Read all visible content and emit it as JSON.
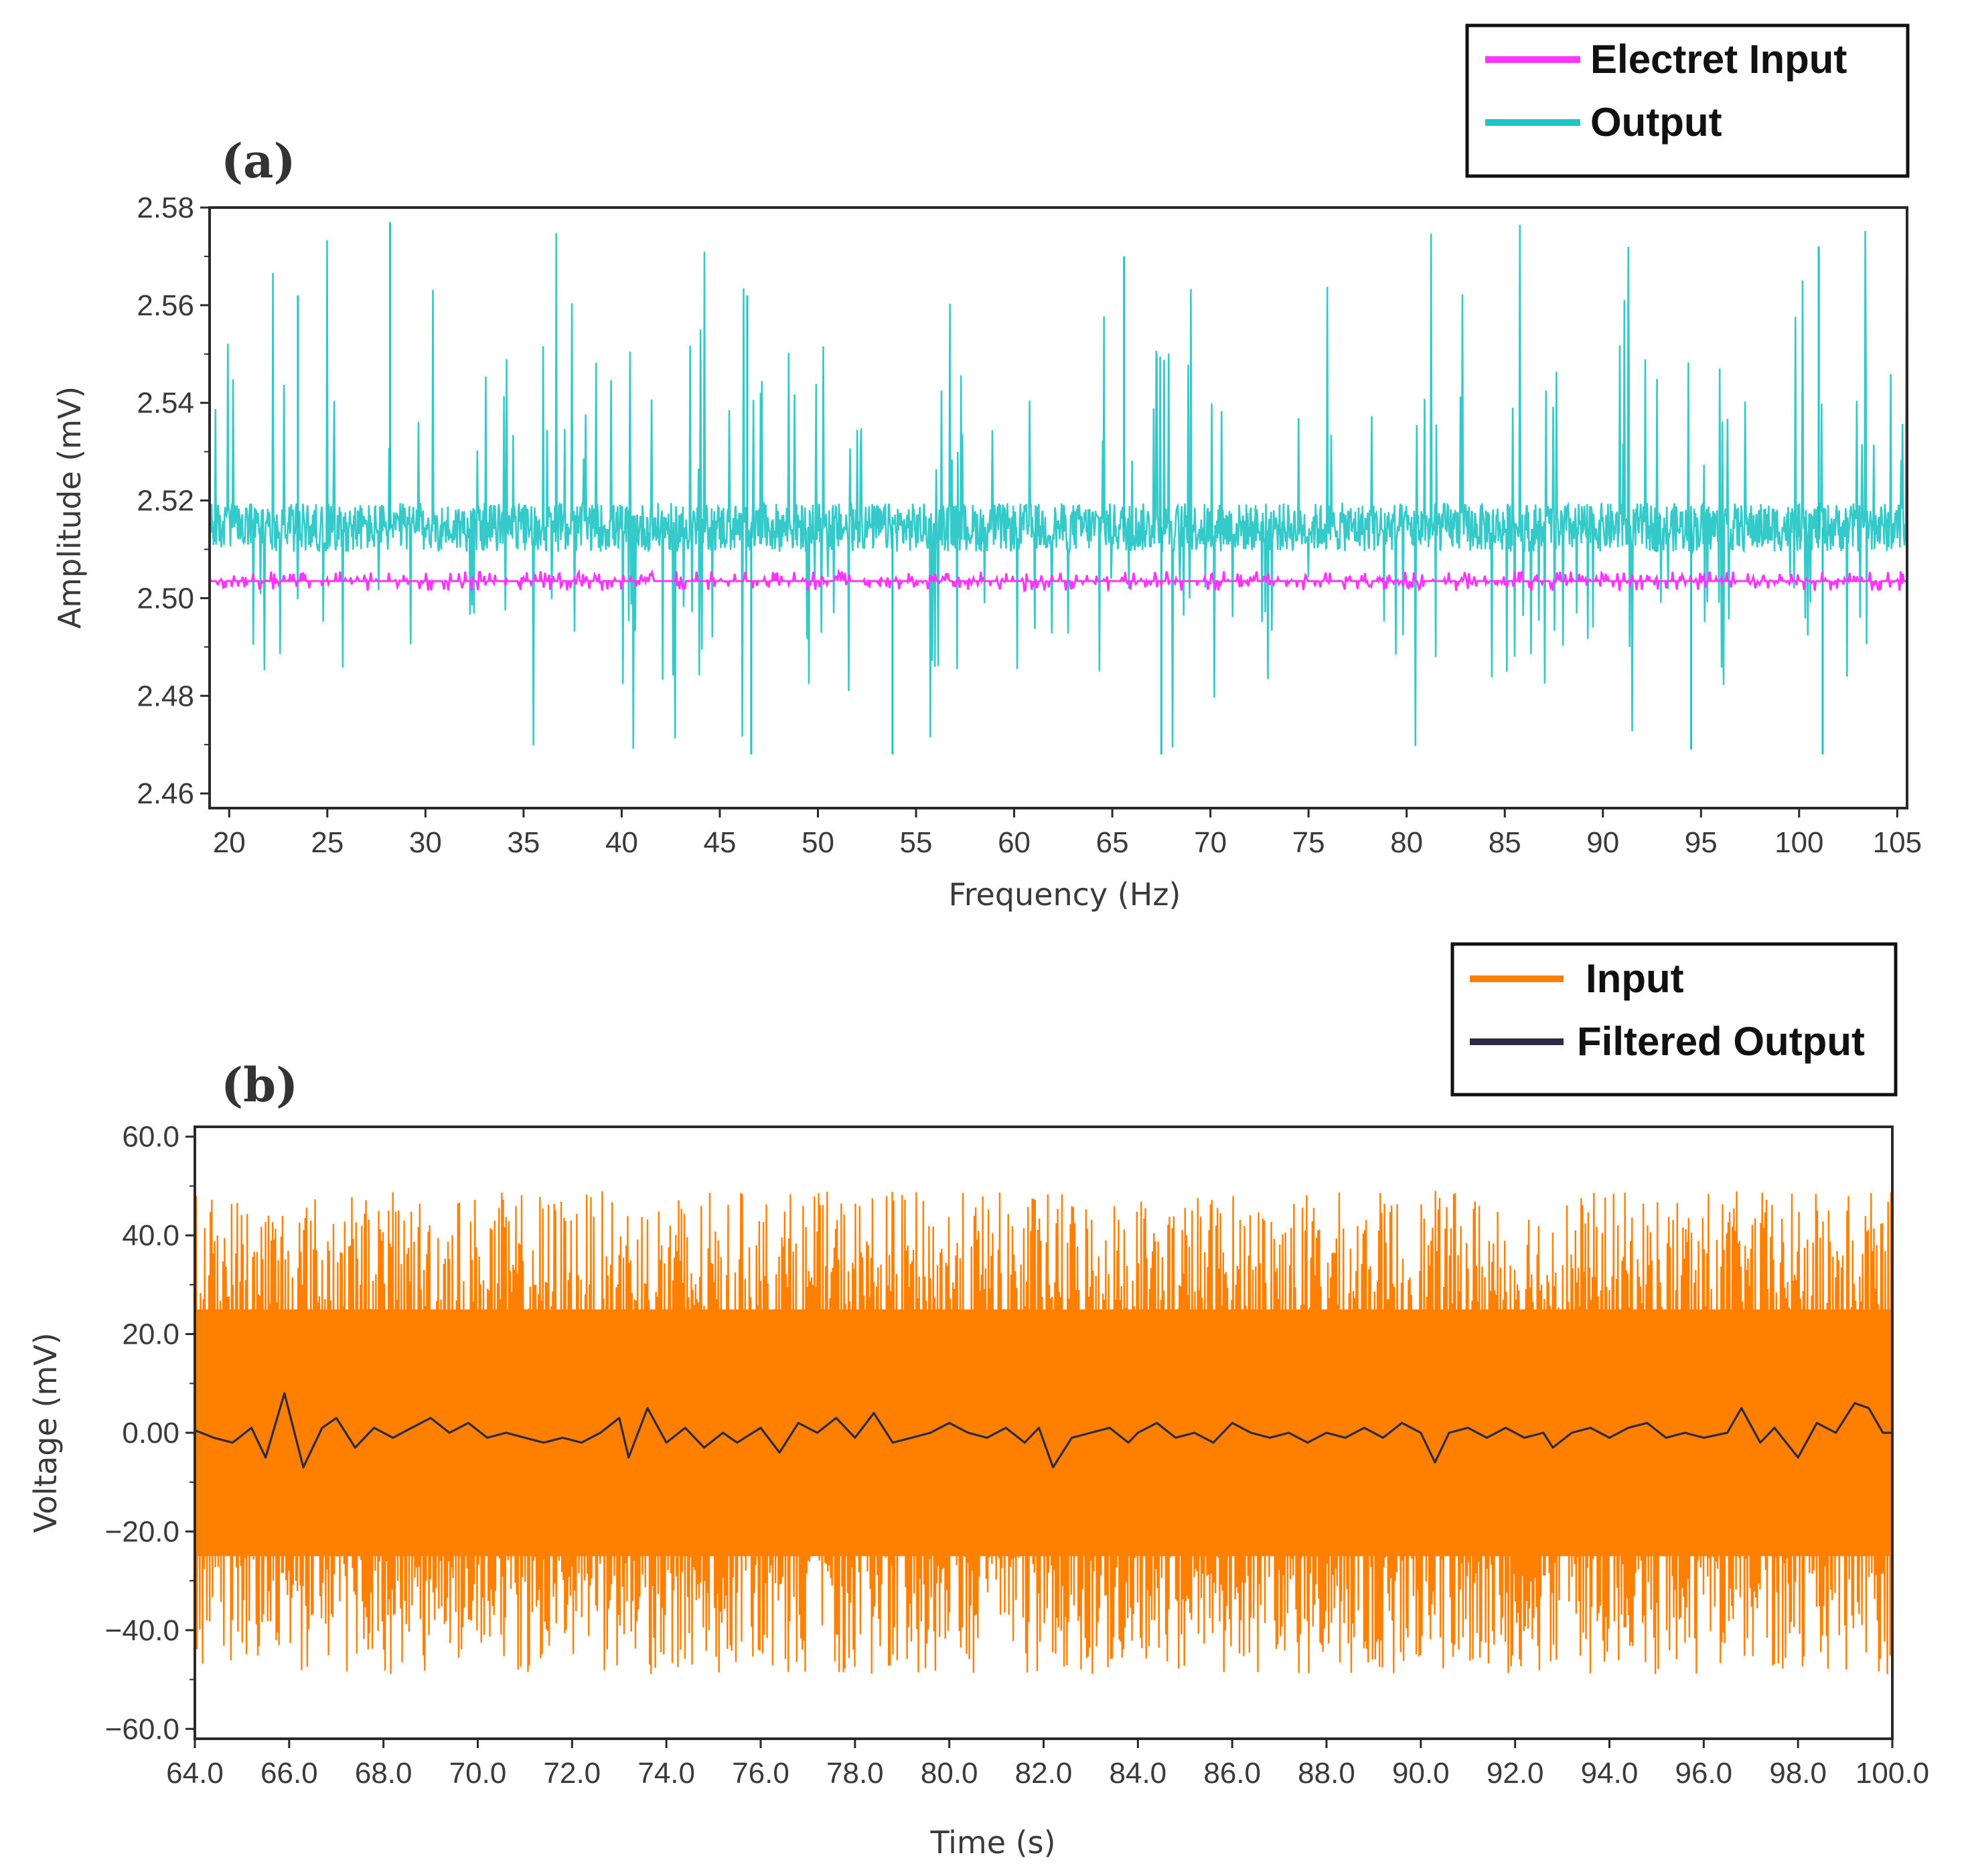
{
  "chart_data": [
    {
      "type": "line",
      "panel_label": "(a)",
      "xlabel": "Frequency (Hz)",
      "ylabel": "Amplitude  (mV)",
      "xlim": [
        19,
        105.5
      ],
      "ylim": [
        2.457,
        2.58
      ],
      "xticks": [
        20,
        25,
        30,
        35,
        40,
        45,
        50,
        55,
        60,
        65,
        70,
        75,
        80,
        85,
        90,
        95,
        100,
        105
      ],
      "xtick_labels": [
        "20",
        "25",
        "30",
        "35",
        "40",
        "45",
        "50",
        "55",
        "60",
        "65",
        "70",
        "75",
        "80",
        "85",
        "90",
        "95",
        "100",
        "105"
      ],
      "yticks": [
        2.46,
        2.48,
        2.5,
        2.52,
        2.54,
        2.56,
        2.58
      ],
      "ytick_labels": [
        "2.46",
        "2.48",
        "2.50",
        "2.52",
        "2.54",
        "2.56",
        "2.58"
      ],
      "legend": {
        "position": "top-right"
      },
      "series": [
        {
          "name": "Electret Input",
          "color": "#ff33ff",
          "baseline": 2.5035,
          "noise_band": [
            2.5015,
            2.5055
          ]
        },
        {
          "name": "Output",
          "color": "#1fc4c4",
          "baseline": 2.5145,
          "noise_band": [
            2.5095,
            2.5195
          ],
          "spike_range": [
            2.468,
            2.577
          ],
          "notable_peaks": [
            {
              "x": 28.2,
              "y": 2.577
            },
            {
              "x": 65.6,
              "y": 2.57
            },
            {
              "x": 101.0,
              "y": 2.572
            },
            {
              "x": 23.5,
              "y": 2.562
            },
            {
              "x": 46.4,
              "y": 2.562
            }
          ],
          "notable_troughs": [
            {
              "x": 46.6,
              "y": 2.468
            },
            {
              "x": 53.8,
              "y": 2.468
            },
            {
              "x": 67.5,
              "y": 2.468
            },
            {
              "x": 101.2,
              "y": 2.468
            },
            {
              "x": 94.5,
              "y": 2.469
            }
          ]
        }
      ]
    },
    {
      "type": "line",
      "panel_label": "(b)",
      "xlabel": "Time (s)",
      "ylabel": "Voltage  (mV)",
      "xlim": [
        64,
        100
      ],
      "ylim": [
        -62,
        62
      ],
      "xticks": [
        64,
        66,
        68,
        70,
        72,
        74,
        76,
        78,
        80,
        82,
        84,
        86,
        88,
        90,
        92,
        94,
        96,
        98,
        100
      ],
      "xtick_labels": [
        "64.0",
        "66.0",
        "68.0",
        "70.0",
        "72.0",
        "74.0",
        "76.0",
        "78.0",
        "80.0",
        "82.0",
        "84.0",
        "86.0",
        "88.0",
        "90.0",
        "92.0",
        "94.0",
        "96.0",
        "98.0",
        "100.0"
      ],
      "yticks": [
        -60,
        -40,
        -20,
        0,
        20,
        40,
        60
      ],
      "ytick_labels": [
        "−60.0",
        "−40.0",
        "−20.0",
        "0.00",
        "20.0",
        "40.0",
        "60.0"
      ],
      "legend": {
        "position": "top-right"
      },
      "series": [
        {
          "name": "Input",
          "color": "#ff7f00",
          "dense_band": [
            -25,
            25
          ],
          "envelope": [
            -49,
            49
          ]
        },
        {
          "name": "Filtered Output",
          "color": "#2b2b47",
          "points": [
            [
              64.0,
              0.5
            ],
            [
              64.4,
              -1
            ],
            [
              64.8,
              -2
            ],
            [
              65.2,
              1
            ],
            [
              65.5,
              -5
            ],
            [
              65.9,
              8
            ],
            [
              66.3,
              -7
            ],
            [
              66.7,
              1
            ],
            [
              67.0,
              3
            ],
            [
              67.4,
              -3
            ],
            [
              67.8,
              1
            ],
            [
              68.2,
              -1
            ],
            [
              68.6,
              1
            ],
            [
              69.0,
              3
            ],
            [
              69.4,
              0
            ],
            [
              69.8,
              2
            ],
            [
              70.2,
              -1
            ],
            [
              70.6,
              0
            ],
            [
              71.0,
              -1
            ],
            [
              71.4,
              -2
            ],
            [
              71.8,
              -1
            ],
            [
              72.2,
              -2
            ],
            [
              72.6,
              0
            ],
            [
              73.0,
              3
            ],
            [
              73.2,
              -5
            ],
            [
              73.6,
              5
            ],
            [
              74.0,
              -2
            ],
            [
              74.4,
              1
            ],
            [
              74.8,
              -3
            ],
            [
              75.2,
              0
            ],
            [
              75.5,
              -2
            ],
            [
              76.0,
              1
            ],
            [
              76.4,
              -4
            ],
            [
              76.8,
              2
            ],
            [
              77.2,
              0
            ],
            [
              77.6,
              3
            ],
            [
              78.0,
              -1
            ],
            [
              78.4,
              4
            ],
            [
              78.8,
              -2
            ],
            [
              79.2,
              -1
            ],
            [
              79.6,
              0
            ],
            [
              80.0,
              2
            ],
            [
              80.4,
              0
            ],
            [
              80.8,
              -1
            ],
            [
              81.2,
              1
            ],
            [
              81.6,
              -2
            ],
            [
              81.9,
              1
            ],
            [
              82.2,
              -7
            ],
            [
              82.6,
              -1
            ],
            [
              83.0,
              0
            ],
            [
              83.4,
              1
            ],
            [
              83.8,
              -2
            ],
            [
              84.0,
              0
            ],
            [
              84.4,
              2
            ],
            [
              84.8,
              -1
            ],
            [
              85.2,
              0
            ],
            [
              85.6,
              -2
            ],
            [
              86.0,
              2
            ],
            [
              86.4,
              0
            ],
            [
              86.8,
              -1
            ],
            [
              87.2,
              0
            ],
            [
              87.6,
              -2
            ],
            [
              88.0,
              0
            ],
            [
              88.4,
              -1
            ],
            [
              88.8,
              1
            ],
            [
              89.2,
              -1
            ],
            [
              89.6,
              2
            ],
            [
              90.0,
              0
            ],
            [
              90.3,
              -6
            ],
            [
              90.6,
              0
            ],
            [
              91.0,
              1
            ],
            [
              91.4,
              -1
            ],
            [
              91.8,
              1
            ],
            [
              92.2,
              -1
            ],
            [
              92.6,
              0
            ],
            [
              92.8,
              -3
            ],
            [
              93.2,
              0
            ],
            [
              93.6,
              1
            ],
            [
              94.0,
              -1
            ],
            [
              94.4,
              1
            ],
            [
              94.8,
              2
            ],
            [
              95.2,
              -1
            ],
            [
              95.6,
              0
            ],
            [
              96.0,
              -1
            ],
            [
              96.5,
              0
            ],
            [
              96.8,
              5
            ],
            [
              97.2,
              -2
            ],
            [
              97.5,
              1
            ],
            [
              98.0,
              -5
            ],
            [
              98.4,
              2
            ],
            [
              98.8,
              0
            ],
            [
              99.2,
              6
            ],
            [
              99.5,
              5
            ],
            [
              99.8,
              0
            ],
            [
              100.0,
              0
            ]
          ]
        }
      ]
    }
  ]
}
